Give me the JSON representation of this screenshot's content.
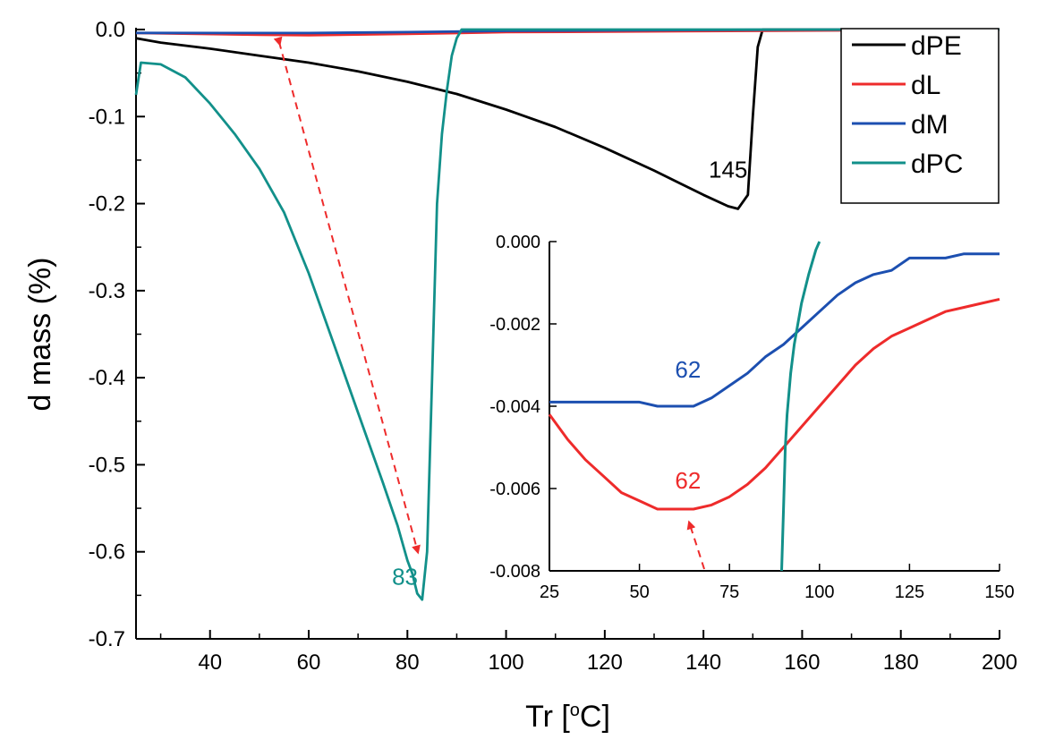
{
  "colors": {
    "dPE": "#000000",
    "dL": "#ee2b2b",
    "dM": "#1c4fb0",
    "dPC": "#12908a",
    "arrow": "#ee2b2b",
    "axis": "#000000"
  },
  "chart_data": [
    {
      "id": "main",
      "type": "line",
      "xlabel": "Tr",
      "xlabel_unit_open": "[",
      "xlabel_unit_deg": "o",
      "xlabel_unit_close": "C]",
      "ylabel": "d mass (%)",
      "xlim": [
        25,
        200
      ],
      "ylim": [
        -0.7,
        0.0
      ],
      "xticks": [
        40,
        60,
        80,
        100,
        120,
        140,
        160,
        180,
        200
      ],
      "yticks": [
        0.0,
        -0.1,
        -0.2,
        -0.3,
        -0.4,
        -0.5,
        -0.6,
        -0.7
      ],
      "ytick_labels": [
        "0.0",
        "-0.1",
        "-0.2",
        "-0.3",
        "-0.4",
        "-0.5",
        "-0.6",
        "-0.7"
      ],
      "legend": {
        "position": "top-right",
        "entries": [
          {
            "key": "dPE",
            "label": "dPE"
          },
          {
            "key": "dL",
            "label": "dL"
          },
          {
            "key": "dM",
            "label": "dM"
          },
          {
            "key": "dPC",
            "label": "dPC"
          }
        ]
      },
      "series": [
        {
          "name": "dPE",
          "x": [
            25,
            30,
            40,
            50,
            60,
            70,
            80,
            90,
            100,
            110,
            120,
            130,
            140,
            145,
            147,
            149,
            150,
            151,
            152,
            155,
            200
          ],
          "y": [
            -0.01,
            -0.015,
            -0.022,
            -0.03,
            -0.038,
            -0.048,
            -0.06,
            -0.074,
            -0.092,
            -0.112,
            -0.136,
            -0.162,
            -0.19,
            -0.203,
            -0.206,
            -0.19,
            -0.1,
            -0.02,
            0.0,
            0.0,
            0.0
          ]
        },
        {
          "name": "dL",
          "x": [
            25,
            50,
            60,
            80,
            100,
            150,
            200
          ],
          "y": [
            -0.004,
            -0.006,
            -0.0065,
            -0.005,
            -0.003,
            -0.0015,
            0.0
          ]
        },
        {
          "name": "dM",
          "x": [
            25,
            60,
            80,
            100,
            150,
            200
          ],
          "y": [
            -0.0039,
            -0.004,
            -0.003,
            -0.0015,
            -0.0003,
            0.0
          ]
        },
        {
          "name": "dPC",
          "x": [
            25,
            26,
            30,
            35,
            40,
            45,
            50,
            55,
            60,
            65,
            70,
            75,
            78,
            80,
            81,
            82,
            83,
            84,
            85,
            86,
            87,
            88,
            89,
            90,
            91,
            93,
            200
          ],
          "y": [
            -0.075,
            -0.038,
            -0.04,
            -0.055,
            -0.085,
            -0.12,
            -0.16,
            -0.21,
            -0.28,
            -0.36,
            -0.44,
            -0.52,
            -0.57,
            -0.61,
            -0.625,
            -0.648,
            -0.655,
            -0.6,
            -0.4,
            -0.2,
            -0.12,
            -0.07,
            -0.03,
            -0.01,
            0.0,
            0.0,
            0.0
          ]
        }
      ],
      "annotations": [
        {
          "text": "145",
          "x": 145,
          "y": -0.17,
          "series": "dPE"
        },
        {
          "text": "83",
          "x": 79.5,
          "y": -0.638,
          "series": "dPC"
        }
      ],
      "arrow": {
        "from": [
          54,
          -0.004
        ],
        "to": [
          82,
          -0.6
        ],
        "style": "dashed",
        "double_headed": true
      }
    },
    {
      "id": "inset",
      "type": "line",
      "xlim": [
        25,
        150
      ],
      "ylim": [
        -0.008,
        0.0
      ],
      "xticks": [
        25,
        50,
        75,
        100,
        125,
        150
      ],
      "yticks": [
        0.0,
        -0.002,
        -0.004,
        -0.006,
        -0.008
      ],
      "ytick_labels": [
        "0.000",
        "-0.002",
        "-0.004",
        "-0.006",
        "-0.008"
      ],
      "series": [
        {
          "name": "dM",
          "x": [
            25,
            30,
            40,
            50,
            55,
            60,
            65,
            70,
            75,
            80,
            85,
            90,
            95,
            100,
            105,
            110,
            115,
            120,
            125,
            130,
            135,
            140,
            145,
            150
          ],
          "y": [
            -0.0039,
            -0.0039,
            -0.0039,
            -0.0039,
            -0.004,
            -0.004,
            -0.004,
            -0.0038,
            -0.0035,
            -0.0032,
            -0.0028,
            -0.0025,
            -0.0021,
            -0.0017,
            -0.0013,
            -0.001,
            -0.0008,
            -0.0007,
            -0.0004,
            -0.0004,
            -0.0004,
            -0.0003,
            -0.0003,
            -0.0003
          ]
        },
        {
          "name": "dL",
          "x": [
            25,
            30,
            35,
            40,
            45,
            50,
            55,
            60,
            65,
            70,
            75,
            80,
            85,
            90,
            95,
            100,
            105,
            110,
            115,
            120,
            125,
            130,
            135,
            140,
            145,
            150
          ],
          "y": [
            -0.0042,
            -0.0048,
            -0.0053,
            -0.0057,
            -0.0061,
            -0.0063,
            -0.0065,
            -0.0065,
            -0.0065,
            -0.0064,
            -0.0062,
            -0.0059,
            -0.0055,
            -0.005,
            -0.0045,
            -0.004,
            -0.0035,
            -0.003,
            -0.0026,
            -0.0023,
            -0.0021,
            -0.0019,
            -0.0017,
            -0.0016,
            -0.0015,
            -0.0014
          ]
        },
        {
          "name": "dPC",
          "x": [
            89.5,
            90,
            90.5,
            91,
            92,
            93,
            95,
            97,
            99,
            100
          ],
          "y": [
            -0.008,
            -0.0065,
            -0.005,
            -0.0042,
            -0.0032,
            -0.0025,
            -0.0015,
            -0.0008,
            -0.0002,
            0.0
          ]
        }
      ],
      "annotations": [
        {
          "text": "62",
          "x": 62,
          "y": -0.0033,
          "series": "dM"
        },
        {
          "text": "62",
          "x": 62,
          "y": -0.006,
          "series": "dL"
        }
      ],
      "arrow": {
        "from": [
          68,
          -0.008
        ],
        "to": [
          64,
          -0.0067
        ],
        "style": "dashed",
        "double_headed": false
      }
    }
  ]
}
